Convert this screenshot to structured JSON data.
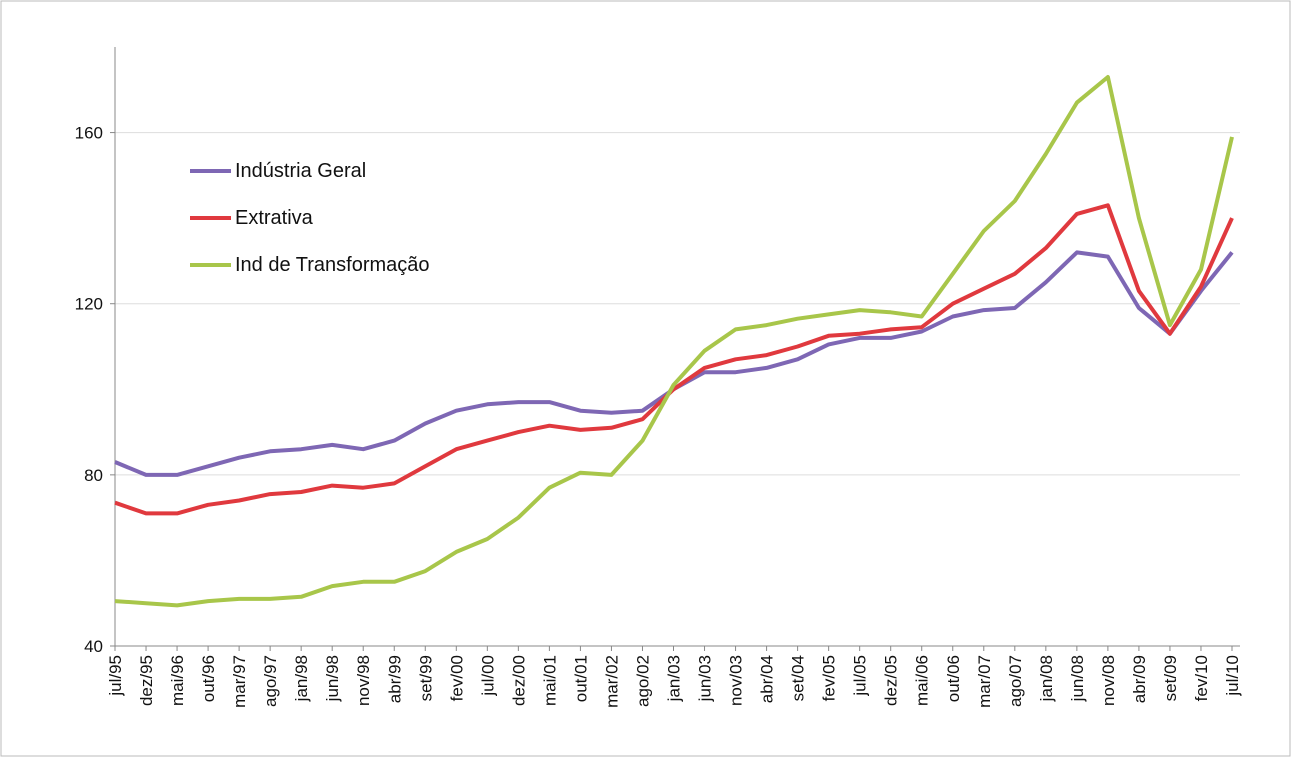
{
  "chart_data": {
    "type": "line",
    "categories": [
      "jul/95",
      "dez/95",
      "mai/96",
      "out/96",
      "mar/97",
      "ago/97",
      "jan/98",
      "jun/98",
      "nov/98",
      "abr/99",
      "set/99",
      "fev/00",
      "jul/00",
      "dez/00",
      "mai/01",
      "out/01",
      "mar/02",
      "ago/02",
      "jan/03",
      "jun/03",
      "nov/03",
      "abr/04",
      "set/04",
      "fev/05",
      "jul/05",
      "dez/05",
      "mai/06",
      "out/06",
      "mar/07",
      "ago/07",
      "jan/08",
      "jun/08",
      "nov/08",
      "abr/09",
      "set/09",
      "fev/10",
      "jul/10"
    ],
    "series": [
      {
        "name": "Indústria Geral",
        "color": "#7e67b4",
        "values": [
          83,
          80,
          80,
          82,
          84,
          85.5,
          86,
          87,
          86,
          88,
          92,
          95,
          96.5,
          97,
          97,
          95,
          94.5,
          95,
          100,
          104,
          104,
          105,
          107,
          110.5,
          112,
          112,
          113.5,
          117,
          118.5,
          119,
          125,
          132,
          131,
          119,
          113,
          123,
          132
        ]
      },
      {
        "name": "Extrativa",
        "color": "#e0393e",
        "values": [
          73.5,
          71,
          71,
          73,
          74,
          75.5,
          76,
          77.5,
          77,
          78,
          82,
          86,
          88,
          90,
          91.5,
          90.5,
          91,
          93,
          100,
          105,
          107,
          108,
          110,
          112.5,
          113,
          114,
          114.5,
          120,
          123.5,
          127,
          133,
          141,
          143,
          123,
          113,
          124,
          140
        ]
      },
      {
        "name": "Ind de Transformação",
        "color": "#a8c64a",
        "values": [
          50.5,
          50,
          49.5,
          50.5,
          51,
          51,
          51.5,
          54,
          55,
          55,
          57.5,
          62,
          65,
          70,
          77,
          80.5,
          80,
          88,
          101,
          109,
          114,
          115,
          116.5,
          117.5,
          118.5,
          118,
          117,
          127,
          137,
          144,
          155,
          167,
          173,
          140,
          115,
          128,
          159
        ]
      }
    ],
    "ylim": [
      40,
      180
    ],
    "yticks": [
      40,
      80,
      120,
      160
    ],
    "grid": true
  }
}
